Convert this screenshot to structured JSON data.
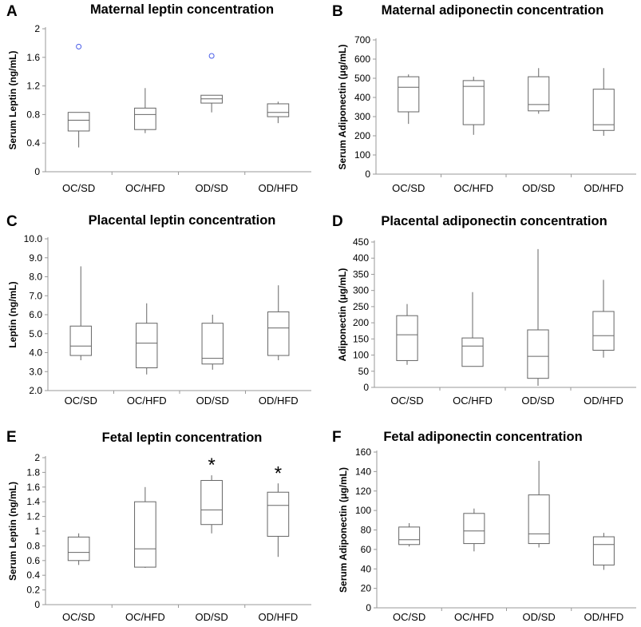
{
  "colors": {
    "box_stroke": "#666666",
    "axis": "#999999",
    "outlier": "#4a5ee8",
    "text": "#000000"
  },
  "chart_data": [
    {
      "panel": "A",
      "type": "box",
      "title": "Maternal leptin concentration",
      "ylabel": "Serum Leptin (ng/mL)",
      "categories": [
        "OC/SD",
        "OC/HFD",
        "OD/SD",
        "OD/HFD"
      ],
      "ylim": [
        0,
        2
      ],
      "yticks": [
        0,
        0.4,
        0.8,
        1.2,
        1.6,
        2
      ],
      "ytick_labels": [
        "0",
        "0.4",
        "0.8",
        "1.2",
        "1.6",
        "2"
      ],
      "boxes": [
        {
          "min": 0.34,
          "q1": 0.57,
          "median": 0.72,
          "q3": 0.83,
          "max": 0.83,
          "outliers": [
            1.75
          ]
        },
        {
          "min": 0.54,
          "q1": 0.59,
          "median": 0.8,
          "q3": 0.89,
          "max": 1.17,
          "outliers": []
        },
        {
          "min": 0.83,
          "q1": 0.96,
          "median": 1.02,
          "q3": 1.07,
          "max": 1.07,
          "outliers": [
            1.62
          ]
        },
        {
          "min": 0.68,
          "q1": 0.77,
          "median": 0.83,
          "q3": 0.95,
          "max": 0.98,
          "outliers": []
        }
      ],
      "annotations": []
    },
    {
      "panel": "B",
      "type": "box",
      "title": "Maternal adiponectin concentration",
      "ylabel": "Serum Adiponectin (μg/mL)",
      "categories": [
        "OC/SD",
        "OC/HFD",
        "OD/SD",
        "OD/HFD"
      ],
      "ylim": [
        0,
        700
      ],
      "yticks": [
        0,
        100,
        200,
        300,
        400,
        500,
        600,
        700
      ],
      "ytick_labels": [
        "0",
        "100",
        "200",
        "300",
        "400",
        "500",
        "600",
        "700"
      ],
      "boxes": [
        {
          "min": 262,
          "q1": 325,
          "median": 453,
          "q3": 508,
          "max": 520,
          "outliers": []
        },
        {
          "min": 205,
          "q1": 258,
          "median": 458,
          "q3": 488,
          "max": 508,
          "outliers": []
        },
        {
          "min": 315,
          "q1": 330,
          "median": 363,
          "q3": 508,
          "max": 553,
          "outliers": []
        },
        {
          "min": 200,
          "q1": 228,
          "median": 258,
          "q3": 443,
          "max": 553,
          "outliers": []
        }
      ],
      "annotations": []
    },
    {
      "panel": "C",
      "type": "box",
      "title": "Placental leptin concentration",
      "ylabel": "Leptin (ng/mL)",
      "categories": [
        "OC/SD",
        "OC/HFD",
        "OD/SD",
        "OD/HFD"
      ],
      "ylim": [
        2,
        10
      ],
      "yticks": [
        2,
        3,
        4,
        5,
        6,
        7,
        8,
        9,
        10
      ],
      "ytick_labels": [
        "2.0",
        "3.0",
        "4.0",
        "5.0",
        "6.0",
        "7.0",
        "8.0",
        "9.0",
        "10.0"
      ],
      "boxes": [
        {
          "min": 3.6,
          "q1": 3.85,
          "median": 4.35,
          "q3": 5.4,
          "max": 8.55,
          "outliers": []
        },
        {
          "min": 2.85,
          "q1": 3.2,
          "median": 4.5,
          "q3": 5.55,
          "max": 6.6,
          "outliers": []
        },
        {
          "min": 3.1,
          "q1": 3.4,
          "median": 3.7,
          "q3": 5.55,
          "max": 6.0,
          "outliers": []
        },
        {
          "min": 3.6,
          "q1": 3.85,
          "median": 5.3,
          "q3": 6.15,
          "max": 7.55,
          "outliers": []
        }
      ],
      "annotations": []
    },
    {
      "panel": "D",
      "type": "box",
      "title": "Placental adiponectin concentration",
      "ylabel": "Adiponectin (μg/mL)",
      "categories": [
        "OC/SD",
        "OC/HFD",
        "OD/SD",
        "OD/HFD"
      ],
      "ylim": [
        0,
        450
      ],
      "yticks": [
        0,
        50,
        100,
        150,
        200,
        250,
        300,
        350,
        400,
        450
      ],
      "ytick_labels": [
        "0",
        "50",
        "100",
        "150",
        "200",
        "250",
        "300",
        "350",
        "400",
        "450"
      ],
      "boxes": [
        {
          "min": 70,
          "q1": 83,
          "median": 163,
          "q3": 222,
          "max": 258,
          "outliers": []
        },
        {
          "min": 65,
          "q1": 65,
          "median": 128,
          "q3": 153,
          "max": 295,
          "outliers": []
        },
        {
          "min": 5,
          "q1": 28,
          "median": 96,
          "q3": 178,
          "max": 428,
          "outliers": []
        },
        {
          "min": 92,
          "q1": 115,
          "median": 160,
          "q3": 235,
          "max": 333,
          "outliers": []
        }
      ],
      "annotations": []
    },
    {
      "panel": "E",
      "type": "box",
      "title": "Fetal leptin concentration",
      "ylabel": "Serum Leptin (ng/mL)",
      "categories": [
        "OC/SD",
        "OC/HFD",
        "OD/SD",
        "OD/HFD"
      ],
      "ylim": [
        0,
        2
      ],
      "yticks": [
        0,
        0.2,
        0.4,
        0.6,
        0.8,
        1,
        1.2,
        1.4,
        1.6,
        1.8,
        2
      ],
      "ytick_labels": [
        "0",
        "0.2",
        "0.4",
        "0.6",
        "0.8",
        "1",
        "1.2",
        "1.4",
        "1.6",
        "1.8",
        "2"
      ],
      "boxes": [
        {
          "min": 0.54,
          "q1": 0.6,
          "median": 0.71,
          "q3": 0.92,
          "max": 0.97,
          "outliers": []
        },
        {
          "min": 0.5,
          "q1": 0.51,
          "median": 0.76,
          "q3": 1.4,
          "max": 1.6,
          "outliers": []
        },
        {
          "min": 0.97,
          "q1": 1.09,
          "median": 1.29,
          "q3": 1.69,
          "max": 1.76,
          "outliers": []
        },
        {
          "min": 0.65,
          "q1": 0.93,
          "median": 1.35,
          "q3": 1.53,
          "max": 1.65,
          "outliers": []
        }
      ],
      "annotations": [
        {
          "category": 2,
          "text": "*",
          "y": 1.9
        },
        {
          "category": 3,
          "text": "*",
          "y": 1.79
        }
      ]
    },
    {
      "panel": "F",
      "type": "box",
      "title": "Fetal adiponectin concentration",
      "ylabel": "Serum Adiponectin (μg/mL)",
      "categories": [
        "OC/SD",
        "OC/HFD",
        "OD/SD",
        "OD/HFD"
      ],
      "ylim": [
        0,
        160
      ],
      "yticks": [
        0,
        20,
        40,
        60,
        80,
        100,
        120,
        140,
        160
      ],
      "ytick_labels": [
        "0",
        "20",
        "40",
        "60",
        "80",
        "100",
        "120",
        "140",
        "160"
      ],
      "boxes": [
        {
          "min": 63,
          "q1": 65,
          "median": 70,
          "q3": 83,
          "max": 87,
          "outliers": []
        },
        {
          "min": 58,
          "q1": 66,
          "median": 79,
          "q3": 97,
          "max": 102,
          "outliers": []
        },
        {
          "min": 62,
          "q1": 66,
          "median": 76,
          "q3": 116,
          "max": 151,
          "outliers": []
        },
        {
          "min": 39,
          "q1": 44,
          "median": 65,
          "q3": 73,
          "max": 77,
          "outliers": []
        }
      ],
      "annotations": []
    }
  ]
}
